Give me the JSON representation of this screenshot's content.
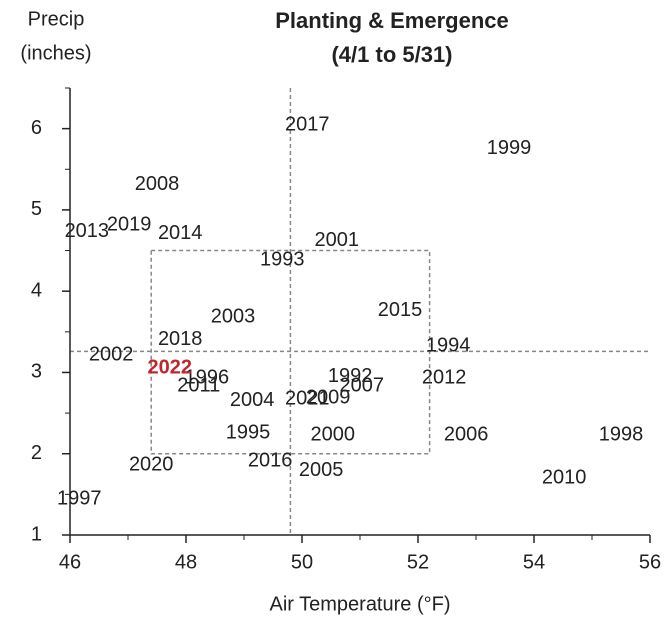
{
  "chart_data": {
    "type": "scatter",
    "title": [
      "Planting & Emergence",
      "(4/1 to 5/31)"
    ],
    "ylabel": [
      "Precip",
      "(inches)"
    ],
    "xlabel": "Air Temperature (°F)",
    "xlim": [
      46,
      56
    ],
    "ylim": [
      1,
      6.5
    ],
    "xticks": [
      46,
      48,
      50,
      52,
      54,
      56
    ],
    "yticks": [
      1,
      2,
      3,
      4,
      5,
      6
    ],
    "xminor": [
      47,
      49,
      51,
      53,
      55
    ],
    "yminor": [
      1.5,
      2.5,
      3.5,
      4.5,
      5.5,
      6.5
    ],
    "reference_lines": {
      "x": 49.8,
      "y": 3.26
    },
    "box": {
      "x": [
        47.4,
        52.2
      ],
      "y": [
        2.0,
        4.5
      ]
    },
    "series": [
      {
        "color": "#222222",
        "labels": [
          "2017",
          "1999",
          "2008",
          "2013",
          "2019",
          "2014",
          "2001",
          "1993",
          "2015",
          "2003",
          "2018",
          "1994",
          "2002",
          "1992",
          "2012",
          "2007",
          "1996",
          "2011",
          "2009",
          "2004",
          "2021",
          "1995",
          "2000",
          "2006",
          "1998",
          "2016",
          "2020",
          "2005",
          "2010",
          "1997"
        ],
        "x": [
          50.09,
          53.57,
          47.5,
          46.29,
          47.02,
          47.9,
          50.6,
          49.66,
          51.69,
          48.81,
          47.9,
          52.52,
          46.71,
          50.83,
          52.45,
          51.03,
          48.36,
          48.22,
          50.45,
          49.14,
          50.09,
          49.07,
          50.53,
          52.83,
          55.5,
          49.45,
          47.4,
          50.33,
          54.52,
          46.16
        ],
        "y": [
          6.04,
          5.75,
          5.31,
          4.73,
          4.81,
          4.71,
          4.62,
          4.38,
          3.76,
          3.68,
          3.4,
          3.32,
          3.21,
          2.95,
          2.93,
          2.83,
          2.93,
          2.83,
          2.68,
          2.65,
          2.67,
          2.25,
          2.23,
          2.23,
          2.23,
          1.91,
          1.86,
          1.79,
          1.7,
          1.44
        ]
      },
      {
        "color": "#c0272d",
        "labels": [
          "2022"
        ],
        "x": [
          47.72
        ],
        "y": [
          3.05
        ]
      }
    ]
  }
}
